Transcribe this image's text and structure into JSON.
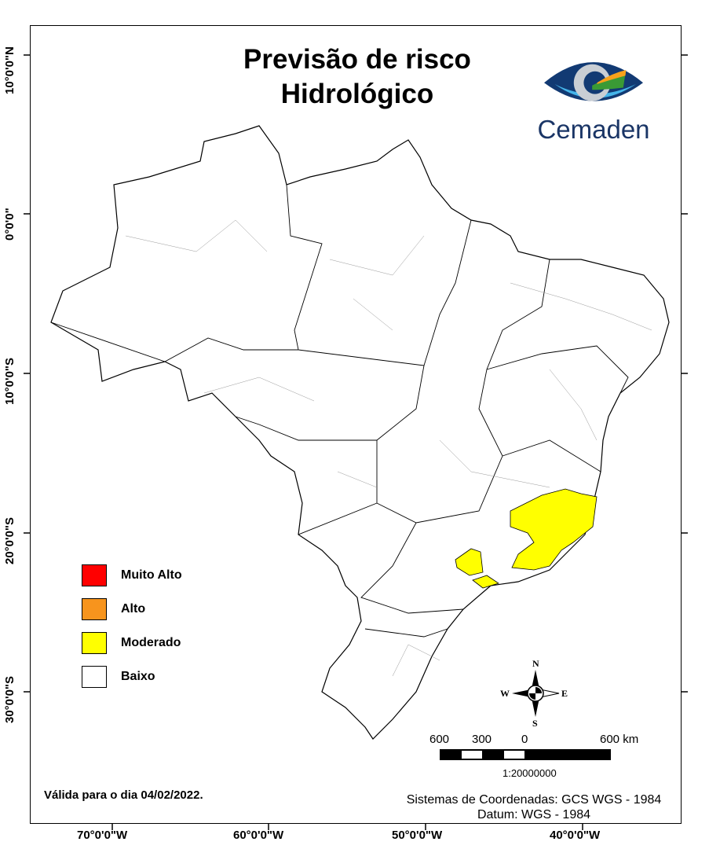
{
  "title_line1": "Previsão de risco",
  "title_line2": "Hidrológico",
  "logo_text": "Cemaden",
  "latitudes": [
    "10°0'0\"N",
    "0°0'0\"",
    "10°0'0\"S",
    "20°0'0\"S",
    "30°0'0\"S"
  ],
  "longitudes": [
    "70°0'0\"W",
    "60°0'0\"W",
    "50°0'0\"W",
    "40°0'0\"W"
  ],
  "legend": [
    {
      "label": "Muito Alto",
      "color": "#ff0000"
    },
    {
      "label": "Alto",
      "color": "#f7941d"
    },
    {
      "label": "Moderado",
      "color": "#ffff00"
    },
    {
      "label": "Baixo",
      "color": "#ffffff"
    }
  ],
  "compass": {
    "n": "N",
    "s": "S",
    "e": "E",
    "w": "W"
  },
  "scale": {
    "labels": [
      "600",
      "300",
      "0",
      "600 km"
    ],
    "ratio": "1:20000000"
  },
  "valid_date": "Válida para o dia 04/02/2022.",
  "coord_system": "Sistemas de Coordenadas: GCS WGS - 1984",
  "datum": "Datum: WGS - 1984"
}
